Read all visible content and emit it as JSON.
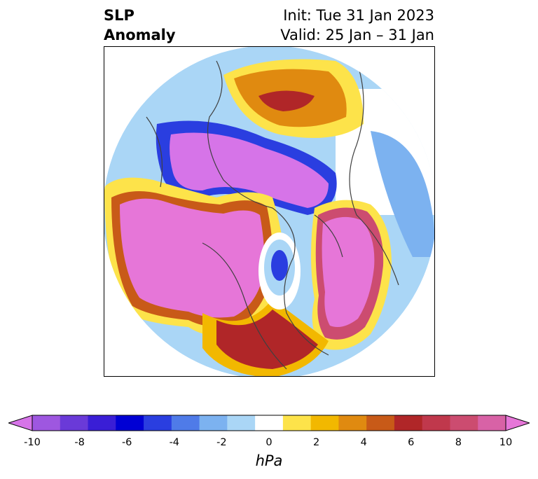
{
  "title": {
    "left_line1": "SLP",
    "left_line2": "Anomaly",
    "right_line1": "Init: Tue 31 Jan 2023",
    "right_line2": "Valid: 25 Jan – 31 Jan"
  },
  "colorbar": {
    "unit": "hPa",
    "min": -10,
    "max": 10,
    "extend": "both",
    "tick_labels": [
      "-10",
      "-8",
      "-6",
      "-4",
      "-2",
      "0",
      "2",
      "4",
      "6",
      "8",
      "10"
    ],
    "colors": [
      "#d674e8",
      "#9e57e0",
      "#6a3ad8",
      "#3a1ed6",
      "#0000d4",
      "#2a3ee0",
      "#4f7be8",
      "#7cb2f0",
      "#aad6f6",
      "#ffffff",
      "#fde34a",
      "#f2b800",
      "#e08a10",
      "#c85a18",
      "#b02628",
      "#c0384c",
      "#cc4c70",
      "#d862a6",
      "#e676d8"
    ]
  },
  "map": {
    "projection": "north-polar-stereographic",
    "field": "sea-level-pressure-anomaly"
  }
}
